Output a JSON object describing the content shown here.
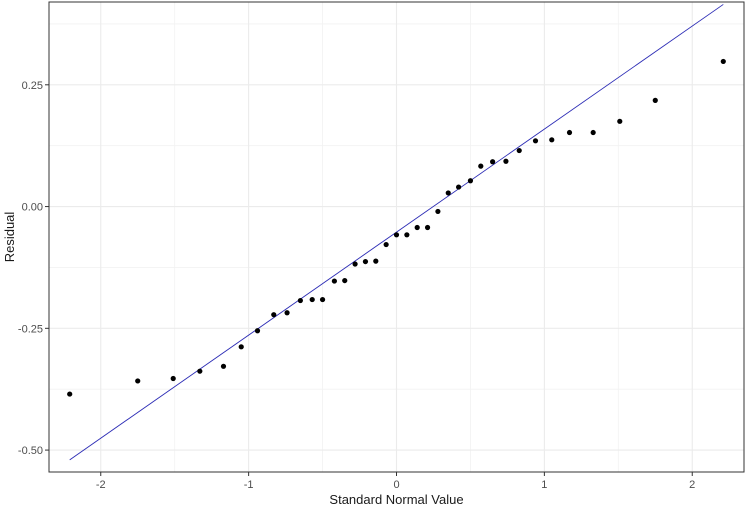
{
  "chart_data": {
    "type": "scatter",
    "title": "",
    "xlabel": "Standard Normal Value",
    "ylabel": "Residual",
    "xlim": [
      -2.35,
      2.35
    ],
    "ylim": [
      -0.545,
      0.42
    ],
    "x_ticks": [
      {
        "value": -2,
        "label": "-2"
      },
      {
        "value": -1,
        "label": "-1"
      },
      {
        "value": 0,
        "label": "0"
      },
      {
        "value": 1,
        "label": "1"
      },
      {
        "value": 2,
        "label": "2"
      }
    ],
    "y_ticks": [
      {
        "value": -0.5,
        "label": "-0.50"
      },
      {
        "value": -0.25,
        "label": "-0.25"
      },
      {
        "value": 0,
        "label": "0.00"
      },
      {
        "value": 0.25,
        "label": "0.25"
      }
    ],
    "grid": true,
    "reference_line": {
      "color": "#2b2bb5",
      "points": [
        [
          -2.21,
          -0.52
        ],
        [
          2.21,
          0.415
        ]
      ]
    },
    "points_color": "#000000",
    "points": [
      [
        -2.21,
        -0.385
      ],
      [
        -1.75,
        -0.358
      ],
      [
        -1.51,
        -0.353
      ],
      [
        -1.33,
        -0.338
      ],
      [
        -1.17,
        -0.328
      ],
      [
        -1.05,
        -0.288
      ],
      [
        -0.94,
        -0.255
      ],
      [
        -0.83,
        -0.222
      ],
      [
        -0.74,
        -0.218
      ],
      [
        -0.65,
        -0.193
      ],
      [
        -0.57,
        -0.191
      ],
      [
        -0.5,
        -0.191
      ],
      [
        -0.42,
        -0.153
      ],
      [
        -0.35,
        -0.152
      ],
      [
        -0.28,
        -0.118
      ],
      [
        -0.21,
        -0.113
      ],
      [
        -0.14,
        -0.112
      ],
      [
        -0.07,
        -0.078
      ],
      [
        0.0,
        -0.058
      ],
      [
        0.07,
        -0.058
      ],
      [
        0.14,
        -0.043
      ],
      [
        0.21,
        -0.043
      ],
      [
        0.28,
        -0.01
      ],
      [
        0.35,
        0.028
      ],
      [
        0.42,
        0.04
      ],
      [
        0.5,
        0.053
      ],
      [
        0.57,
        0.083
      ],
      [
        0.65,
        0.092
      ],
      [
        0.74,
        0.093
      ],
      [
        0.83,
        0.115
      ],
      [
        0.94,
        0.135
      ],
      [
        1.05,
        0.137
      ],
      [
        1.17,
        0.152
      ],
      [
        1.33,
        0.152
      ],
      [
        1.51,
        0.175
      ],
      [
        1.75,
        0.218
      ],
      [
        2.21,
        0.298
      ]
    ]
  }
}
